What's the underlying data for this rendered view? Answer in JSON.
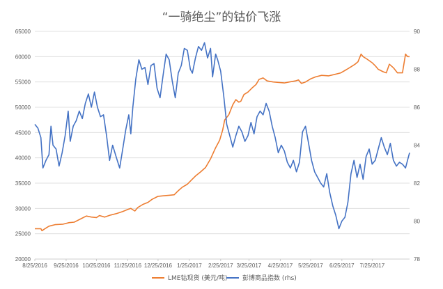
{
  "chart_data": {
    "type": "line",
    "title": "“一骑绝尘”的钴价飞涨",
    "x_tick_labels": [
      "8/25/2016",
      "9/25/2016",
      "10/25/2016",
      "11/25/2016",
      "12/25/2016",
      "1/25/2017",
      "2/25/2017",
      "3/25/2017",
      "4/25/2017",
      "5/25/2017",
      "6/25/2017",
      "7/25/2017"
    ],
    "x_range": [
      "2016-08-25",
      "2017-08-31"
    ],
    "y_left": {
      "min": 20000,
      "max": 65000,
      "step": 5000
    },
    "y_right": {
      "min": 78,
      "max": 90,
      "step": 2
    },
    "grid": "horizontal",
    "legend_position": "bottom",
    "series": [
      {
        "name": "LME钴现货 (美元/吨)",
        "axis": "left",
        "color": "#ED7D31",
        "points": [
          [
            "2016-08-25",
            26000
          ],
          [
            "2016-08-31",
            26000
          ],
          [
            "2016-09-01",
            25600
          ],
          [
            "2016-09-04",
            26000
          ],
          [
            "2016-09-08",
            26500
          ],
          [
            "2016-09-14",
            26800
          ],
          [
            "2016-09-22",
            26900
          ],
          [
            "2016-09-28",
            27200
          ],
          [
            "2016-10-03",
            27300
          ],
          [
            "2016-10-06",
            27600
          ],
          [
            "2016-10-10",
            28000
          ],
          [
            "2016-10-15",
            28500
          ],
          [
            "2016-10-20",
            28300
          ],
          [
            "2016-10-25",
            28200
          ],
          [
            "2016-10-28",
            28600
          ],
          [
            "2016-11-02",
            28300
          ],
          [
            "2016-11-08",
            28700
          ],
          [
            "2016-11-14",
            29000
          ],
          [
            "2016-11-20",
            29400
          ],
          [
            "2016-11-25",
            29800
          ],
          [
            "2016-11-28",
            30000
          ],
          [
            "2016-12-02",
            29500
          ],
          [
            "2016-12-05",
            30200
          ],
          [
            "2016-12-10",
            30800
          ],
          [
            "2016-12-15",
            31200
          ],
          [
            "2016-12-19",
            31800
          ],
          [
            "2016-12-25",
            32400
          ],
          [
            "2016-12-30",
            32500
          ],
          [
            "2017-01-05",
            32600
          ],
          [
            "2017-01-10",
            32700
          ],
          [
            "2017-01-14",
            33500
          ],
          [
            "2017-01-18",
            34200
          ],
          [
            "2017-01-23",
            34800
          ],
          [
            "2017-01-27",
            35600
          ],
          [
            "2017-01-31",
            36400
          ],
          [
            "2017-02-05",
            37200
          ],
          [
            "2017-02-10",
            38100
          ],
          [
            "2017-02-15",
            39800
          ],
          [
            "2017-02-20",
            42000
          ],
          [
            "2017-02-24",
            43500
          ],
          [
            "2017-02-27",
            45500
          ],
          [
            "2017-03-01",
            47500
          ],
          [
            "2017-03-05",
            48500
          ],
          [
            "2017-03-09",
            50500
          ],
          [
            "2017-03-12",
            51500
          ],
          [
            "2017-03-15",
            51000
          ],
          [
            "2017-03-17",
            51200
          ],
          [
            "2017-03-20",
            52500
          ],
          [
            "2017-03-24",
            53000
          ],
          [
            "2017-03-28",
            53800
          ],
          [
            "2017-04-01",
            54500
          ],
          [
            "2017-04-04",
            55500
          ],
          [
            "2017-04-08",
            55800
          ],
          [
            "2017-04-12",
            55200
          ],
          [
            "2017-04-18",
            55000
          ],
          [
            "2017-04-24",
            54900
          ],
          [
            "2017-04-29",
            54800
          ],
          [
            "2017-05-04",
            55000
          ],
          [
            "2017-05-10",
            55200
          ],
          [
            "2017-05-13",
            55400
          ],
          [
            "2017-05-16",
            54700
          ],
          [
            "2017-05-20",
            55000
          ],
          [
            "2017-05-25",
            55600
          ],
          [
            "2017-05-30",
            56000
          ],
          [
            "2017-06-05",
            56300
          ],
          [
            "2017-06-12",
            56200
          ],
          [
            "2017-06-18",
            56500
          ],
          [
            "2017-06-24",
            56800
          ],
          [
            "2017-06-30",
            57500
          ],
          [
            "2017-07-04",
            58000
          ],
          [
            "2017-07-08",
            58500
          ],
          [
            "2017-07-11",
            59000
          ],
          [
            "2017-07-14",
            60500
          ],
          [
            "2017-07-16",
            60000
          ],
          [
            "2017-07-20",
            59500
          ],
          [
            "2017-07-25",
            58800
          ],
          [
            "2017-07-28",
            58200
          ],
          [
            "2017-07-31",
            57500
          ],
          [
            "2017-08-05",
            57000
          ],
          [
            "2017-08-08",
            56800
          ],
          [
            "2017-08-11",
            58500
          ],
          [
            "2017-08-15",
            57800
          ],
          [
            "2017-08-19",
            56800
          ],
          [
            "2017-08-24",
            56800
          ],
          [
            "2017-08-27",
            60500
          ],
          [
            "2017-08-29",
            60000
          ],
          [
            "2017-08-31",
            60000
          ]
        ]
      },
      {
        "name": "彭博商品指数 (rhs)",
        "axis": "right",
        "color": "#4472C4",
        "points": [
          [
            "2016-08-25",
            85.1
          ],
          [
            "2016-08-28",
            84.9
          ],
          [
            "2016-08-31",
            84.4
          ],
          [
            "2016-09-02",
            82.8
          ],
          [
            "2016-09-05",
            83.2
          ],
          [
            "2016-09-08",
            83.5
          ],
          [
            "2016-09-10",
            85.0
          ],
          [
            "2016-09-12",
            84.0
          ],
          [
            "2016-09-15",
            83.8
          ],
          [
            "2016-09-18",
            82.9
          ],
          [
            "2016-09-21",
            83.6
          ],
          [
            "2016-09-24",
            84.5
          ],
          [
            "2016-09-27",
            85.8
          ],
          [
            "2016-09-29",
            84.2
          ],
          [
            "2016-10-02",
            85.0
          ],
          [
            "2016-10-05",
            85.3
          ],
          [
            "2016-10-08",
            85.8
          ],
          [
            "2016-10-11",
            85.4
          ],
          [
            "2016-10-14",
            86.2
          ],
          [
            "2016-10-17",
            86.7
          ],
          [
            "2016-10-20",
            86.0
          ],
          [
            "2016-10-23",
            86.8
          ],
          [
            "2016-10-26",
            86.0
          ],
          [
            "2016-10-29",
            85.5
          ],
          [
            "2016-11-01",
            85.6
          ],
          [
            "2016-11-04",
            84.5
          ],
          [
            "2016-11-07",
            83.2
          ],
          [
            "2016-11-10",
            84.0
          ],
          [
            "2016-11-14",
            83.3
          ],
          [
            "2016-11-17",
            82.8
          ],
          [
            "2016-11-20",
            83.8
          ],
          [
            "2016-11-23",
            84.8
          ],
          [
            "2016-11-26",
            85.6
          ],
          [
            "2016-11-28",
            84.6
          ],
          [
            "2016-11-30",
            86.0
          ],
          [
            "2016-12-03",
            87.5
          ],
          [
            "2016-12-06",
            88.5
          ],
          [
            "2016-12-09",
            88.0
          ],
          [
            "2016-12-12",
            88.1
          ],
          [
            "2016-12-15",
            87.2
          ],
          [
            "2016-12-18",
            88.2
          ],
          [
            "2016-12-21",
            88.3
          ],
          [
            "2016-12-24",
            87.0
          ],
          [
            "2016-12-27",
            86.5
          ],
          [
            "2016-12-30",
            87.7
          ],
          [
            "2017-01-02",
            88.8
          ],
          [
            "2017-01-05",
            88.5
          ],
          [
            "2017-01-08",
            87.4
          ],
          [
            "2017-01-11",
            86.5
          ],
          [
            "2017-01-14",
            87.8
          ],
          [
            "2017-01-17",
            88.2
          ],
          [
            "2017-01-20",
            89.1
          ],
          [
            "2017-01-23",
            89.0
          ],
          [
            "2017-01-26",
            88.0
          ],
          [
            "2017-01-28",
            87.8
          ],
          [
            "2017-01-31",
            88.6
          ],
          [
            "2017-02-03",
            89.2
          ],
          [
            "2017-02-06",
            89.0
          ],
          [
            "2017-02-09",
            89.4
          ],
          [
            "2017-02-12",
            88.6
          ],
          [
            "2017-02-15",
            89.1
          ],
          [
            "2017-02-17",
            87.6
          ],
          [
            "2017-02-20",
            88.8
          ],
          [
            "2017-02-22",
            88.5
          ],
          [
            "2017-02-25",
            87.9
          ],
          [
            "2017-02-28",
            86.6
          ],
          [
            "2017-03-03",
            85.1
          ],
          [
            "2017-03-06",
            84.5
          ],
          [
            "2017-03-09",
            83.9
          ],
          [
            "2017-03-12",
            84.5
          ],
          [
            "2017-03-15",
            85.0
          ],
          [
            "2017-03-18",
            84.7
          ],
          [
            "2017-03-21",
            84.2
          ],
          [
            "2017-03-24",
            84.5
          ],
          [
            "2017-03-27",
            85.2
          ],
          [
            "2017-03-30",
            84.6
          ],
          [
            "2017-04-02",
            85.5
          ],
          [
            "2017-04-05",
            85.8
          ],
          [
            "2017-04-08",
            85.6
          ],
          [
            "2017-04-11",
            86.2
          ],
          [
            "2017-04-14",
            85.8
          ],
          [
            "2017-04-17",
            85.0
          ],
          [
            "2017-04-20",
            84.4
          ],
          [
            "2017-04-23",
            83.6
          ],
          [
            "2017-04-26",
            84.0
          ],
          [
            "2017-04-29",
            83.7
          ],
          [
            "2017-05-02",
            83.1
          ],
          [
            "2017-05-05",
            82.8
          ],
          [
            "2017-05-08",
            83.2
          ],
          [
            "2017-05-11",
            82.6
          ],
          [
            "2017-05-14",
            83.1
          ],
          [
            "2017-05-17",
            84.7
          ],
          [
            "2017-05-20",
            85.0
          ],
          [
            "2017-05-23",
            84.1
          ],
          [
            "2017-05-26",
            83.2
          ],
          [
            "2017-05-29",
            82.6
          ],
          [
            "2017-06-01",
            82.3
          ],
          [
            "2017-06-04",
            82.0
          ],
          [
            "2017-06-07",
            81.8
          ],
          [
            "2017-06-10",
            82.5
          ],
          [
            "2017-06-13",
            81.5
          ],
          [
            "2017-06-16",
            80.8
          ],
          [
            "2017-06-19",
            80.3
          ],
          [
            "2017-06-22",
            79.6
          ],
          [
            "2017-06-25",
            80.0
          ],
          [
            "2017-06-28",
            80.2
          ],
          [
            "2017-07-01",
            81.0
          ],
          [
            "2017-07-04",
            82.5
          ],
          [
            "2017-07-07",
            83.2
          ],
          [
            "2017-07-10",
            82.3
          ],
          [
            "2017-07-13",
            83.0
          ],
          [
            "2017-07-16",
            82.2
          ],
          [
            "2017-07-19",
            83.4
          ],
          [
            "2017-07-22",
            83.8
          ],
          [
            "2017-07-25",
            83.0
          ],
          [
            "2017-07-28",
            83.2
          ],
          [
            "2017-07-31",
            83.8
          ],
          [
            "2017-08-03",
            84.4
          ],
          [
            "2017-08-06",
            83.9
          ],
          [
            "2017-08-09",
            83.5
          ],
          [
            "2017-08-12",
            84.1
          ],
          [
            "2017-08-15",
            83.2
          ],
          [
            "2017-08-18",
            82.9
          ],
          [
            "2017-08-21",
            83.1
          ],
          [
            "2017-08-24",
            83.0
          ],
          [
            "2017-08-27",
            82.8
          ],
          [
            "2017-08-30",
            83.4
          ],
          [
            "2017-08-31",
            83.6
          ]
        ]
      }
    ]
  }
}
